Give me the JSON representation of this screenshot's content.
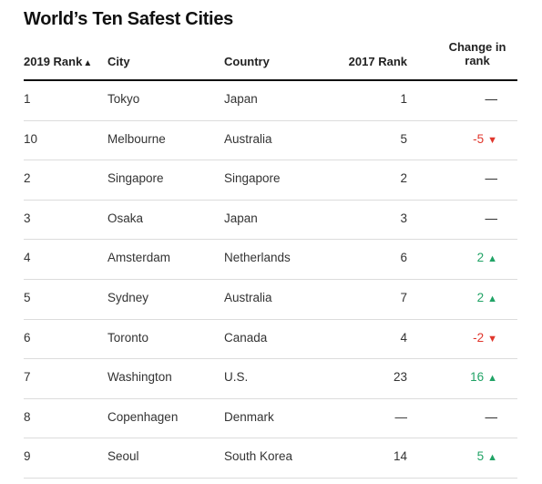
{
  "title": "World’s Ten Safest Cities",
  "colors": {
    "up": "#21a366",
    "down": "#e0362c",
    "neutral": "#222222"
  },
  "headers": {
    "rank": "2019 Rank",
    "sort_mark": "▲",
    "city": "City",
    "country": "Country",
    "rank_2017": "2017 Rank",
    "change_line1": "Change in",
    "change_line2": "rank"
  },
  "rows": [
    {
      "rank": "1",
      "city": "Tokyo",
      "country": "Japan",
      "rank_2017": "1",
      "change": "—",
      "dir": "none",
      "arrow": ""
    },
    {
      "rank": "10",
      "city": "Melbourne",
      "country": "Australia",
      "rank_2017": "5",
      "change": "-5",
      "dir": "down",
      "arrow": "▼"
    },
    {
      "rank": "2",
      "city": "Singapore",
      "country": "Singapore",
      "rank_2017": "2",
      "change": "—",
      "dir": "none",
      "arrow": ""
    },
    {
      "rank": "3",
      "city": "Osaka",
      "country": "Japan",
      "rank_2017": "3",
      "change": "—",
      "dir": "none",
      "arrow": ""
    },
    {
      "rank": "4",
      "city": "Amsterdam",
      "country": "Netherlands",
      "rank_2017": "6",
      "change": "2",
      "dir": "up",
      "arrow": "▲"
    },
    {
      "rank": "5",
      "city": "Sydney",
      "country": "Australia",
      "rank_2017": "7",
      "change": "2",
      "dir": "up",
      "arrow": "▲"
    },
    {
      "rank": "6",
      "city": "Toronto",
      "country": "Canada",
      "rank_2017": "4",
      "change": "-2",
      "dir": "down",
      "arrow": "▼"
    },
    {
      "rank": "7",
      "city": "Washington",
      "country": "U.S.",
      "rank_2017": "23",
      "change": "16",
      "dir": "up",
      "arrow": "▲"
    },
    {
      "rank": "8",
      "city": "Copenhagen",
      "country": "Denmark",
      "rank_2017": "—",
      "change": "—",
      "dir": "none",
      "arrow": ""
    },
    {
      "rank": "9",
      "city": "Seoul",
      "country": "South Korea",
      "rank_2017": "14",
      "change": "5",
      "dir": "up",
      "arrow": "▲"
    }
  ]
}
